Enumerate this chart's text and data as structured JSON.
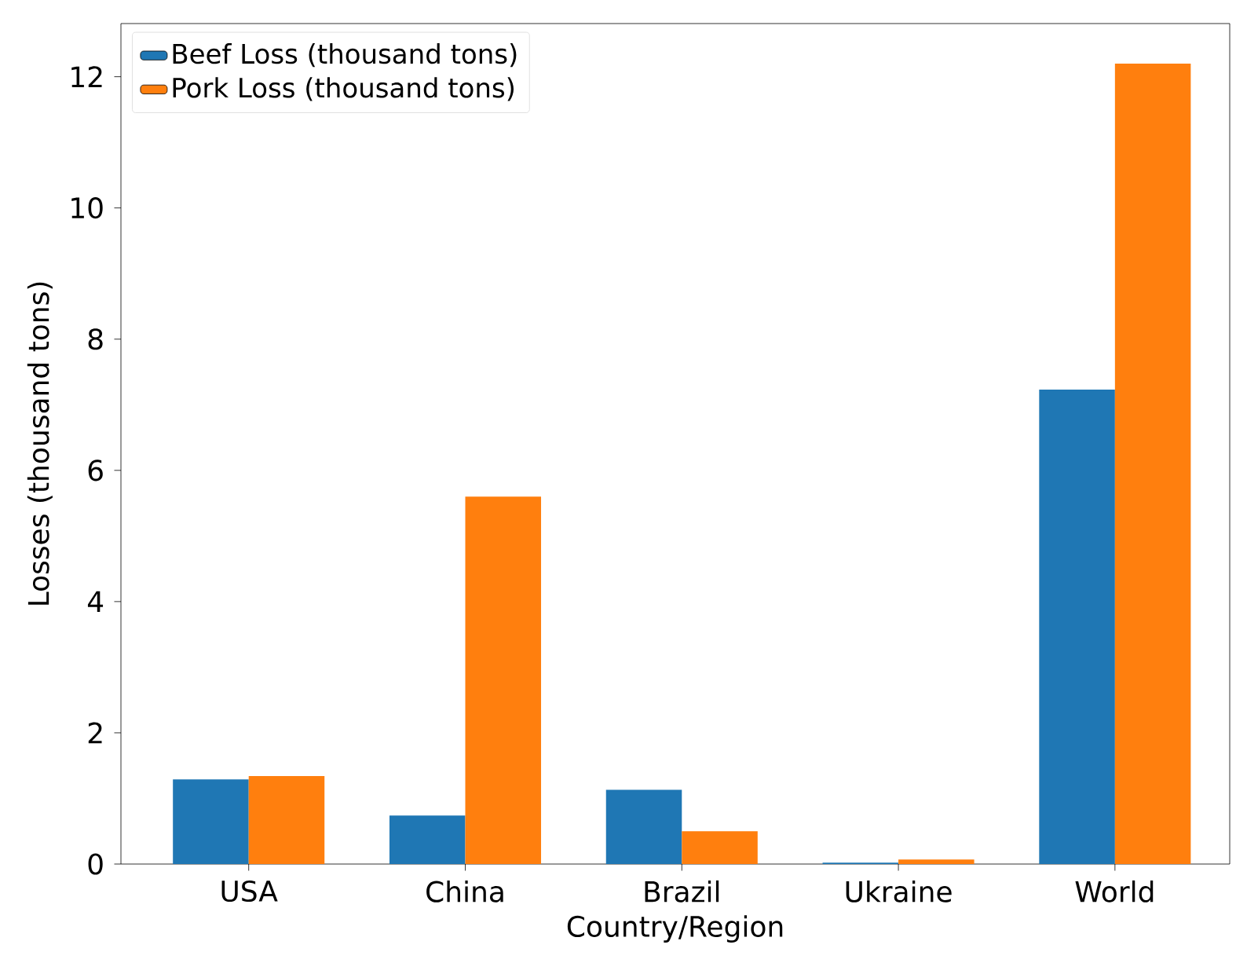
{
  "chart_data": {
    "type": "bar",
    "xlabel": "Country/Region",
    "ylabel": "Losses (thousand tons)",
    "categories": [
      "USA",
      "China",
      "Brazil",
      "Ukraine",
      "World"
    ],
    "series": [
      {
        "name": "Beef Loss (thousand tons)",
        "color": "#1f77b4",
        "values": [
          1.29,
          0.74,
          1.13,
          0.02,
          7.23
        ]
      },
      {
        "name": "Pork Loss (thousand tons)",
        "color": "#ff7f0e",
        "values": [
          1.34,
          5.6,
          0.5,
          0.07,
          12.2
        ]
      }
    ],
    "ylim": [
      0,
      12.81
    ],
    "yticks": [
      0,
      2,
      4,
      6,
      8,
      10,
      12
    ],
    "legend": "top left"
  }
}
